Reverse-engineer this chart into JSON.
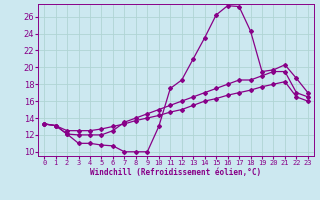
{
  "xlabel": "Windchill (Refroidissement éolien,°C)",
  "bg_color": "#cce8f0",
  "grid_color": "#b0d4d4",
  "line_color": "#880088",
  "marker": "D",
  "markersize": 2.0,
  "linewidth": 0.9,
  "xlim": [
    -0.5,
    23.5
  ],
  "ylim": [
    9.5,
    27.5
  ],
  "xticks": [
    0,
    1,
    2,
    3,
    4,
    5,
    6,
    7,
    8,
    9,
    10,
    11,
    12,
    13,
    14,
    15,
    16,
    17,
    18,
    19,
    20,
    21,
    22,
    23
  ],
  "yticks": [
    10,
    12,
    14,
    16,
    18,
    20,
    22,
    24,
    26
  ],
  "curve1_x": [
    0,
    1,
    2,
    3,
    4,
    5,
    6,
    7,
    8,
    9,
    10,
    11,
    12,
    13,
    14,
    15,
    16,
    17,
    18,
    19,
    20,
    21,
    22,
    23
  ],
  "curve1_y": [
    13.3,
    13.1,
    12.1,
    11.0,
    11.0,
    10.8,
    10.7,
    10.0,
    10.0,
    10.0,
    13.0,
    17.5,
    18.5,
    21.0,
    23.5,
    26.2,
    27.3,
    27.2,
    24.3,
    19.5,
    19.7,
    20.3,
    18.7,
    17.0
  ],
  "curve2_x": [
    0,
    1,
    2,
    3,
    4,
    5,
    6,
    7,
    8,
    9,
    10,
    11,
    12,
    13,
    14,
    15,
    16,
    17,
    18,
    19,
    20,
    21,
    22,
    23
  ],
  "curve2_y": [
    13.3,
    13.1,
    12.1,
    12.0,
    12.0,
    12.0,
    12.5,
    13.5,
    14.0,
    14.5,
    15.0,
    15.5,
    16.0,
    16.5,
    17.0,
    17.5,
    18.0,
    18.5,
    18.5,
    19.0,
    19.5,
    19.5,
    17.0,
    16.5
  ],
  "curve3_x": [
    0,
    1,
    2,
    3,
    4,
    5,
    6,
    7,
    8,
    9,
    10,
    11,
    12,
    13,
    14,
    15,
    16,
    17,
    18,
    19,
    20,
    21,
    22,
    23
  ],
  "curve3_y": [
    13.3,
    13.1,
    12.5,
    12.5,
    12.5,
    12.7,
    13.0,
    13.3,
    13.7,
    14.0,
    14.3,
    14.7,
    15.0,
    15.5,
    16.0,
    16.3,
    16.7,
    17.0,
    17.3,
    17.7,
    18.0,
    18.3,
    16.5,
    16.0
  ],
  "xlabel_fontsize": 5.5,
  "tick_fontsize": 5.0,
  "ylabel_fontsize": 6.0
}
